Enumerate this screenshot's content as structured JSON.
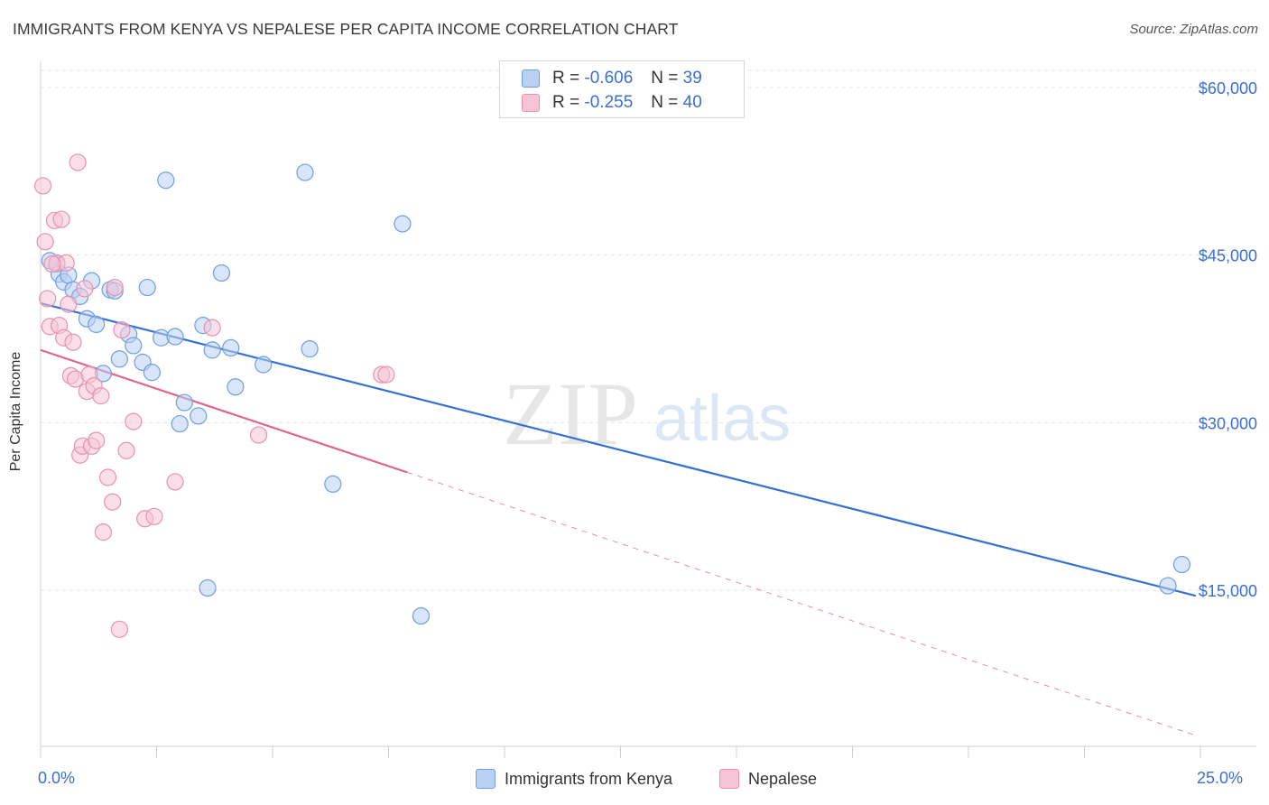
{
  "title": "IMMIGRANTS FROM KENYA VS NEPALESE PER CAPITA INCOME CORRELATION CHART",
  "source": "Source: ZipAtlas.com",
  "watermark": {
    "zip": "ZIP",
    "atlas": "atlas"
  },
  "legend": {
    "r_label": "R =",
    "n_label": "N =",
    "rows": [
      {
        "r": "-0.606",
        "n": "39"
      },
      {
        "r": "-0.255",
        "n": "40"
      }
    ]
  },
  "chart_data": {
    "type": "scatter",
    "title": "IMMIGRANTS FROM KENYA VS NEPALESE PER CAPITA INCOME CORRELATION CHART",
    "xlabel": "",
    "ylabel": "Per Capita Income",
    "xlim": [
      0,
      25
    ],
    "ylim": [
      0,
      63000
    ],
    "x_tick_labels": [
      "0.0%",
      "25.0%"
    ],
    "y_ticks": [
      15000,
      30000,
      45000,
      60000
    ],
    "y_tick_labels": [
      "$15,000",
      "$30,000",
      "$45,000",
      "$60,000"
    ],
    "grid": true,
    "colors": {
      "kenya": "#6f9fe0",
      "kenya_fill": "#b9d0f2",
      "nepalese": "#e991ad",
      "nepalese_fill": "#f6c5d5",
      "kenya_line": "#3471d0",
      "nepalese_line": "#e0648e"
    },
    "series": [
      {
        "name": "Immigrants from Kenya",
        "r": -0.606,
        "n": 39,
        "trend": {
          "x0": 0.0,
          "y0": 40700,
          "x1": 24.9,
          "y1": 14500,
          "solid_to": 24.9
        },
        "points": [
          [
            0.2,
            44500
          ],
          [
            0.35,
            44200
          ],
          [
            0.4,
            43300
          ],
          [
            0.5,
            42600
          ],
          [
            0.6,
            43200
          ],
          [
            0.7,
            41900
          ],
          [
            0.85,
            41300
          ],
          [
            1.0,
            39300
          ],
          [
            1.1,
            42700
          ],
          [
            1.2,
            38800
          ],
          [
            1.35,
            34400
          ],
          [
            1.5,
            41900
          ],
          [
            1.6,
            41800
          ],
          [
            1.7,
            35700
          ],
          [
            1.9,
            37900
          ],
          [
            2.0,
            36900
          ],
          [
            2.2,
            35400
          ],
          [
            2.3,
            42100
          ],
          [
            2.4,
            34500
          ],
          [
            2.6,
            37600
          ],
          [
            2.7,
            51700
          ],
          [
            2.9,
            37700
          ],
          [
            3.0,
            29900
          ],
          [
            3.1,
            31800
          ],
          [
            3.4,
            30600
          ],
          [
            3.5,
            38700
          ],
          [
            3.6,
            15200
          ],
          [
            3.7,
            36500
          ],
          [
            3.9,
            43400
          ],
          [
            4.1,
            36700
          ],
          [
            4.2,
            33200
          ],
          [
            4.8,
            35200
          ],
          [
            5.7,
            52400
          ],
          [
            5.8,
            36600
          ],
          [
            6.3,
            24500
          ],
          [
            7.8,
            47800
          ],
          [
            8.2,
            12700
          ],
          [
            24.3,
            15400
          ],
          [
            24.6,
            17300
          ]
        ]
      },
      {
        "name": "Nepalese",
        "r": -0.255,
        "n": 40,
        "trend": {
          "x0": 0.0,
          "y0": 36500,
          "x1": 24.9,
          "y1": 2000,
          "solid_to": 7.9
        },
        "points": [
          [
            0.05,
            51200
          ],
          [
            0.1,
            46200
          ],
          [
            0.15,
            41100
          ],
          [
            0.2,
            38600
          ],
          [
            0.3,
            48100
          ],
          [
            0.35,
            44300
          ],
          [
            0.4,
            38700
          ],
          [
            0.45,
            48200
          ],
          [
            0.5,
            37600
          ],
          [
            0.55,
            44300
          ],
          [
            0.6,
            40600
          ],
          [
            0.65,
            34200
          ],
          [
            0.7,
            37200
          ],
          [
            0.75,
            33900
          ],
          [
            0.8,
            53300
          ],
          [
            0.85,
            27100
          ],
          [
            0.9,
            27900
          ],
          [
            0.95,
            42000
          ],
          [
            1.0,
            32800
          ],
          [
            1.05,
            34300
          ],
          [
            1.1,
            27900
          ],
          [
            1.15,
            33300
          ],
          [
            1.2,
            28400
          ],
          [
            1.3,
            32400
          ],
          [
            1.35,
            20200
          ],
          [
            1.45,
            25100
          ],
          [
            1.55,
            22900
          ],
          [
            1.6,
            42100
          ],
          [
            1.7,
            11500
          ],
          [
            1.75,
            38300
          ],
          [
            1.85,
            27500
          ],
          [
            2.0,
            30100
          ],
          [
            2.25,
            21400
          ],
          [
            2.45,
            21600
          ],
          [
            2.9,
            24700
          ],
          [
            3.7,
            38500
          ],
          [
            4.7,
            28900
          ],
          [
            7.35,
            34300
          ],
          [
            7.45,
            34300
          ],
          [
            0.25,
            44200
          ]
        ]
      }
    ]
  }
}
